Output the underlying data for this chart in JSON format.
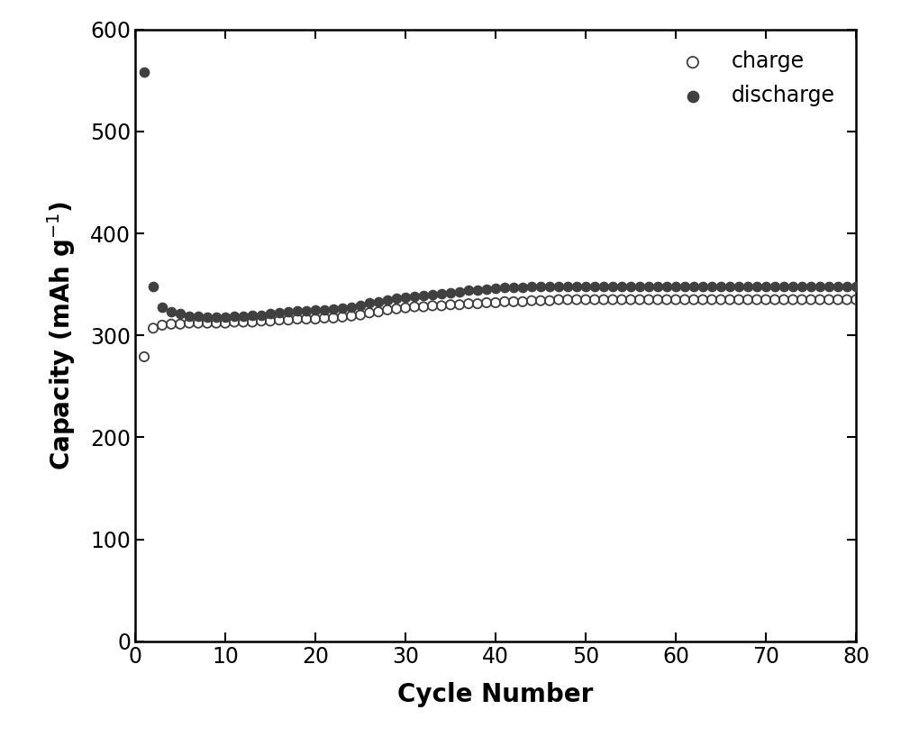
{
  "charge_cycles": [
    1,
    2,
    3,
    4,
    5,
    6,
    7,
    8,
    9,
    10,
    11,
    12,
    13,
    14,
    15,
    16,
    17,
    18,
    19,
    20,
    21,
    22,
    23,
    24,
    25,
    26,
    27,
    28,
    29,
    30,
    31,
    32,
    33,
    34,
    35,
    36,
    37,
    38,
    39,
    40,
    41,
    42,
    43,
    44,
    45,
    46,
    47,
    48,
    49,
    50,
    51,
    52,
    53,
    54,
    55,
    56,
    57,
    58,
    59,
    60,
    61,
    62,
    63,
    64,
    65,
    66,
    67,
    68,
    69,
    70,
    71,
    72,
    73,
    74,
    75,
    76,
    77,
    78,
    79,
    80
  ],
  "charge_capacity": [
    279,
    307,
    310,
    311,
    311,
    312,
    312,
    312,
    312,
    312,
    313,
    313,
    313,
    314,
    314,
    315,
    315,
    316,
    316,
    316,
    317,
    317,
    318,
    319,
    320,
    322,
    323,
    325,
    326,
    327,
    328,
    328,
    329,
    329,
    330,
    330,
    331,
    331,
    332,
    332,
    333,
    333,
    333,
    334,
    334,
    334,
    335,
    335,
    335,
    335,
    335,
    335,
    335,
    335,
    335,
    335,
    335,
    335,
    335,
    335,
    335,
    335,
    335,
    335,
    335,
    335,
    335,
    335,
    335,
    335,
    335,
    335,
    335,
    335,
    335,
    335,
    335,
    335,
    335,
    335
  ],
  "discharge_cycles": [
    1,
    2,
    3,
    4,
    5,
    6,
    7,
    8,
    9,
    10,
    11,
    12,
    13,
    14,
    15,
    16,
    17,
    18,
    19,
    20,
    21,
    22,
    23,
    24,
    25,
    26,
    27,
    28,
    29,
    30,
    31,
    32,
    33,
    34,
    35,
    36,
    37,
    38,
    39,
    40,
    41,
    42,
    43,
    44,
    45,
    46,
    47,
    48,
    49,
    50,
    51,
    52,
    53,
    54,
    55,
    56,
    57,
    58,
    59,
    60,
    61,
    62,
    63,
    64,
    65,
    66,
    67,
    68,
    69,
    70,
    71,
    72,
    73,
    74,
    75,
    76,
    77,
    78,
    79,
    80
  ],
  "discharge_capacity": [
    558,
    348,
    328,
    323,
    321,
    319,
    319,
    318,
    318,
    318,
    319,
    319,
    320,
    320,
    321,
    322,
    323,
    324,
    324,
    325,
    325,
    326,
    327,
    328,
    329,
    332,
    333,
    335,
    336,
    337,
    338,
    339,
    340,
    341,
    342,
    343,
    344,
    344,
    345,
    346,
    347,
    347,
    347,
    348,
    348,
    348,
    348,
    348,
    348,
    348,
    348,
    348,
    348,
    348,
    348,
    348,
    348,
    348,
    348,
    348,
    348,
    348,
    348,
    348,
    348,
    348,
    348,
    348,
    348,
    348,
    348,
    348,
    348,
    348,
    348,
    348,
    348,
    348,
    348,
    348
  ],
  "xlabel": "Cycle Number",
  "xlim": [
    0,
    80
  ],
  "ylim": [
    0,
    600
  ],
  "xticks": [
    0,
    10,
    20,
    30,
    40,
    50,
    60,
    70,
    80
  ],
  "yticks": [
    0,
    100,
    200,
    300,
    400,
    500,
    600
  ],
  "charge_label": "charge",
  "discharge_label": "discharge",
  "marker_size": 55,
  "marker_color": "#404040",
  "background_color": "#ffffff",
  "legend_loc": "upper right",
  "xlabel_fontsize": 20,
  "ylabel_fontsize": 20,
  "tick_labelsize": 17,
  "legend_fontsize": 17
}
